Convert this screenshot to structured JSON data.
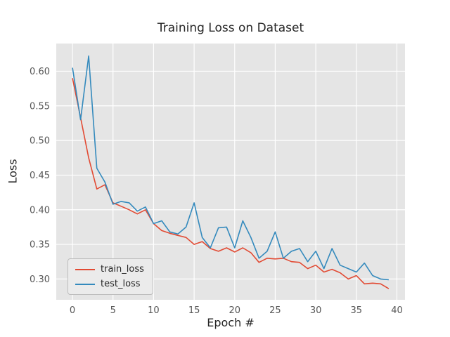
{
  "chart_data": {
    "type": "line",
    "title": "Training Loss on Dataset",
    "xlabel": "Epoch #",
    "ylabel": "Loss",
    "x": [
      0,
      1,
      2,
      3,
      4,
      5,
      6,
      7,
      8,
      9,
      10,
      11,
      12,
      13,
      14,
      15,
      16,
      17,
      18,
      19,
      20,
      21,
      22,
      23,
      24,
      25,
      26,
      27,
      28,
      29,
      30,
      31,
      32,
      33,
      34,
      35,
      36,
      37,
      38,
      39
    ],
    "series": [
      {
        "name": "train_loss",
        "color": "#E24A33",
        "values": [
          0.59,
          0.533,
          0.475,
          0.43,
          0.436,
          0.41,
          0.405,
          0.4,
          0.394,
          0.4,
          0.38,
          0.37,
          0.366,
          0.363,
          0.36,
          0.35,
          0.354,
          0.344,
          0.34,
          0.345,
          0.339,
          0.345,
          0.338,
          0.324,
          0.33,
          0.329,
          0.33,
          0.325,
          0.324,
          0.315,
          0.32,
          0.31,
          0.314,
          0.309,
          0.3,
          0.305,
          0.293,
          0.294,
          0.293,
          0.286
        ]
      },
      {
        "name": "test_loss",
        "color": "#348ABD",
        "values": [
          0.605,
          0.53,
          0.622,
          0.46,
          0.44,
          0.408,
          0.412,
          0.41,
          0.398,
          0.404,
          0.38,
          0.384,
          0.368,
          0.365,
          0.375,
          0.41,
          0.36,
          0.345,
          0.374,
          0.375,
          0.345,
          0.384,
          0.36,
          0.33,
          0.34,
          0.368,
          0.33,
          0.34,
          0.344,
          0.325,
          0.34,
          0.315,
          0.344,
          0.32,
          0.315,
          0.31,
          0.323,
          0.305,
          0.3,
          0.299
        ]
      }
    ],
    "xlim": [
      -2,
      41
    ],
    "ylim": [
      0.27,
      0.64
    ],
    "xticks": [
      0,
      5,
      10,
      15,
      20,
      25,
      30,
      35,
      40
    ],
    "yticks": [
      0.3,
      0.35,
      0.4,
      0.45,
      0.5,
      0.55,
      0.6
    ],
    "grid": true,
    "legend_position": "lower left",
    "style": {
      "fig_bg": "#FFFFFF",
      "plot_bg": "#E5E5E5",
      "grid_color": "#FFFFFF",
      "tick_color": "#555555"
    }
  }
}
